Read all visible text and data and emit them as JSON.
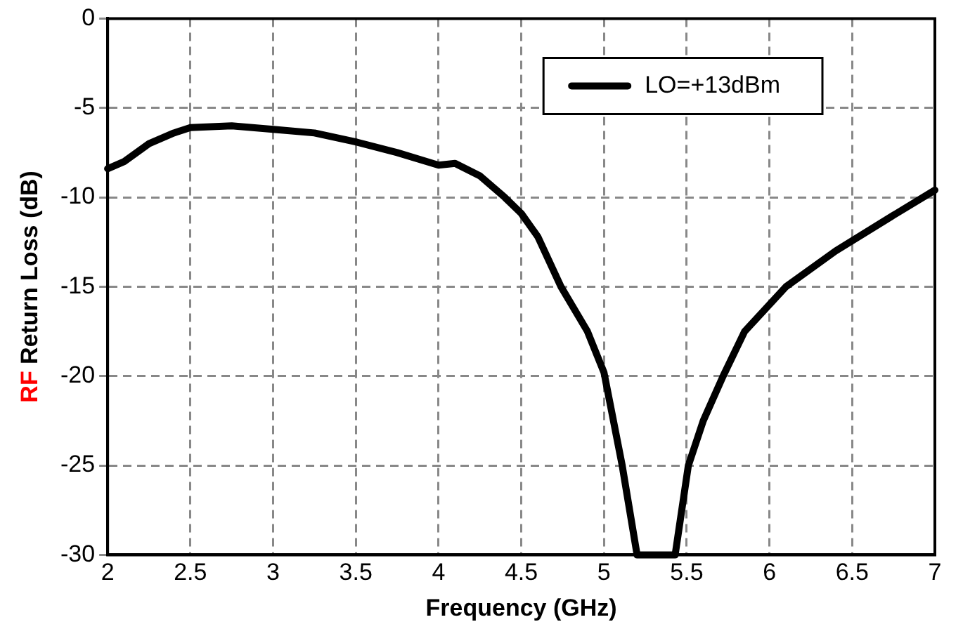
{
  "chart_data": {
    "type": "line",
    "xlabel": "Frequency (GHz)",
    "ylabel": "RF Return Loss (dB)",
    "xlim": [
      2,
      7
    ],
    "xticks": [
      2,
      2.5,
      3,
      3.5,
      4,
      4.5,
      5,
      5.5,
      6,
      6.5,
      7
    ],
    "ylim": [
      -30,
      0
    ],
    "yticks": [
      -30,
      -25,
      -20,
      -15,
      -10,
      -5,
      0
    ],
    "grid": true,
    "legend": "top right",
    "marker": "none",
    "line_style": "solid",
    "series": [
      {
        "name": "LO=+13dBm",
        "color": "#000000",
        "x": [
          2,
          2.1,
          2.25,
          2.4,
          2.5,
          2.75,
          3,
          3.25,
          3.5,
          3.75,
          4,
          4.1,
          4.25,
          4.4,
          4.5,
          4.6,
          4.74,
          4.9,
          5,
          5.11,
          5.2,
          5.43,
          5.51,
          5.6,
          5.72,
          5.85,
          6.1,
          6.4,
          6.75,
          7
        ],
        "values": [
          -8.4,
          -8,
          -7,
          -6.4,
          -6.1,
          -6,
          -6.2,
          -6.4,
          -6.9,
          -7.5,
          -8.2,
          -8.1,
          -8.8,
          -10,
          -10.9,
          -12.2,
          -15,
          -17.5,
          -19.8,
          -25,
          -30,
          -30,
          -25,
          -22.5,
          -20,
          -17.5,
          -15,
          -13,
          -11,
          -9.6
        ]
      }
    ]
  }
}
